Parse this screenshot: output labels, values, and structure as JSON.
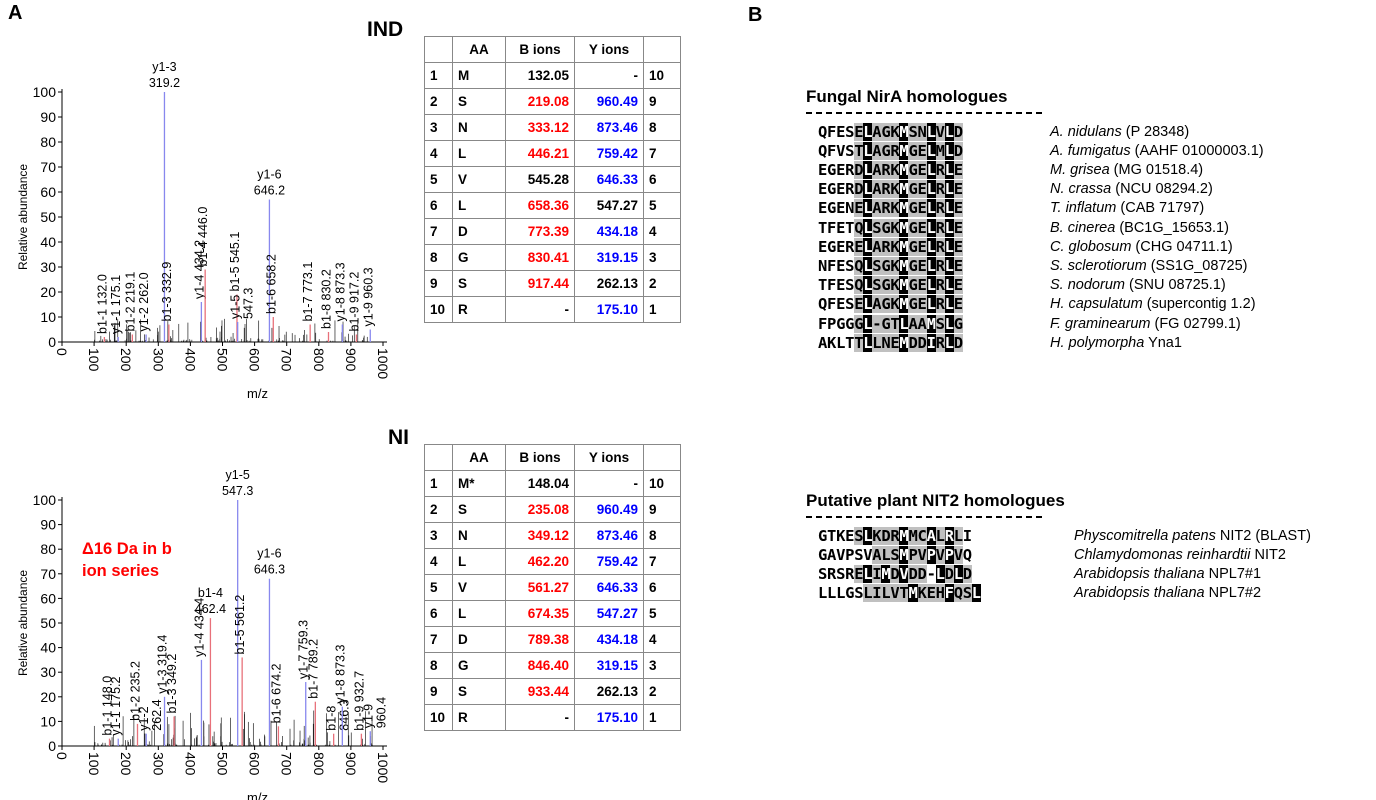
{
  "panels": {
    "a_label": "A",
    "b_label": "B"
  },
  "charts": [
    {
      "condition": "IND",
      "ylabel": "Relative abundance",
      "xlabel": "m/z",
      "xticks": [
        0,
        100,
        200,
        300,
        400,
        500,
        600,
        700,
        800,
        900,
        1000
      ],
      "yticks": [
        0,
        10,
        20,
        30,
        40,
        50,
        60,
        70,
        80,
        90,
        100
      ],
      "annotation": [],
      "peaks": [
        {
          "mz": 132.0,
          "h": 2,
          "c": "r",
          "lines": [
            "b1-1 132.0"
          ]
        },
        {
          "mz": 175.1,
          "h": 2,
          "c": "b",
          "lines": [
            "y1-1 175.1"
          ]
        },
        {
          "mz": 219.1,
          "h": 3,
          "c": "r",
          "lines": [
            "b1-2 219.1"
          ]
        },
        {
          "mz": 262.0,
          "h": 3,
          "c": "b",
          "lines": [
            "y1-2 262.0"
          ]
        },
        {
          "mz": 319.2,
          "h": 100,
          "c": "b",
          "lines": [
            "y1-3",
            "319.2"
          ]
        },
        {
          "mz": 332.9,
          "h": 7,
          "c": "r",
          "lines": [
            "b1-3 332.9"
          ]
        },
        {
          "mz": 434.2,
          "h": 16,
          "c": "b",
          "lines": [
            "y1-4 434.2"
          ]
        },
        {
          "mz": 446.0,
          "h": 29,
          "c": "r",
          "lines": [
            "b1-4 446.0"
          ]
        },
        {
          "mz": 545.1,
          "h": 19,
          "c": "r",
          "lines": [
            "b1-5 545.1"
          ]
        },
        {
          "mz": 547.3,
          "h": 8,
          "c": "b",
          "lines": [
            "y1-5",
            "547.3"
          ]
        },
        {
          "mz": 646.2,
          "h": 57,
          "c": "b",
          "lines": [
            "y1-6",
            "646.2"
          ]
        },
        {
          "mz": 658.2,
          "h": 10,
          "c": "r",
          "lines": [
            "b1-6 658.2"
          ]
        },
        {
          "mz": 773.1,
          "h": 7,
          "c": "r",
          "lines": [
            "b1-7 773.1"
          ]
        },
        {
          "mz": 830.2,
          "h": 4,
          "c": "r",
          "lines": [
            "b1-8 830.2"
          ]
        },
        {
          "mz": 873.3,
          "h": 7,
          "c": "b",
          "lines": [
            "y1-8 873.3"
          ]
        },
        {
          "mz": 917.2,
          "h": 3,
          "c": "r",
          "lines": [
            "b1-9 917.2"
          ]
        },
        {
          "mz": 960.3,
          "h": 5,
          "c": "b",
          "lines": [
            "y1-9 960.3"
          ]
        }
      ],
      "table": {
        "headers": [
          "",
          "AA",
          "B ions",
          "Y ions",
          ""
        ],
        "rows": [
          [
            "1",
            "M",
            "132.05",
            "-",
            "10"
          ],
          [
            "2",
            "S",
            "219.08",
            "960.49",
            "9"
          ],
          [
            "3",
            "N",
            "333.12",
            "873.46",
            "8"
          ],
          [
            "4",
            "L",
            "446.21",
            "759.42",
            "7"
          ],
          [
            "5",
            "V",
            "545.28",
            "646.33",
            "6"
          ],
          [
            "6",
            "L",
            "658.36",
            "547.27",
            "5"
          ],
          [
            "7",
            "D",
            "773.39",
            "434.18",
            "4"
          ],
          [
            "8",
            "G",
            "830.41",
            "319.15",
            "3"
          ],
          [
            "9",
            "S",
            "917.44",
            "262.13",
            "2"
          ],
          [
            "10",
            "R",
            "-",
            "175.10",
            "1"
          ]
        ],
        "b_colors": [
          "k",
          "r",
          "r",
          "r",
          "k",
          "r",
          "r",
          "r",
          "r",
          "k"
        ],
        "y_colors": [
          "k",
          "b",
          "b",
          "b",
          "b",
          "k",
          "b",
          "b",
          "k",
          "b"
        ]
      }
    },
    {
      "condition": "NI",
      "ylabel": "Relative abundance",
      "xlabel": "m/z",
      "xticks": [
        0,
        100,
        200,
        300,
        400,
        500,
        600,
        700,
        800,
        900,
        1000
      ],
      "yticks": [
        0,
        10,
        20,
        30,
        40,
        50,
        60,
        70,
        80,
        90,
        100
      ],
      "annotation": [
        "Δ16  Da in b",
        "ion series"
      ],
      "peaks": [
        {
          "mz": 148.0,
          "h": 3,
          "c": "r",
          "lines": [
            "b1-1 148.0"
          ]
        },
        {
          "mz": 175.2,
          "h": 3,
          "c": "b",
          "lines": [
            "y1-1 175.2"
          ]
        },
        {
          "mz": 235.2,
          "h": 9,
          "c": "r",
          "lines": [
            "b1-2 235.2"
          ]
        },
        {
          "mz": 262.4,
          "h": 5,
          "c": "b",
          "lines": [
            "y1-2",
            "262.4"
          ]
        },
        {
          "mz": 319.4,
          "h": 20,
          "c": "b",
          "lines": [
            "y1-3 319.4"
          ]
        },
        {
          "mz": 349.2,
          "h": 12,
          "c": "r",
          "lines": [
            "b1-3 349.2"
          ]
        },
        {
          "mz": 434.4,
          "h": 35,
          "c": "b",
          "lines": [
            "y1-4 434.4"
          ]
        },
        {
          "mz": 462.4,
          "h": 52,
          "c": "r",
          "lines": [
            "b1-4",
            "462.4"
          ]
        },
        {
          "mz": 547.3,
          "h": 100,
          "c": "b",
          "lines": [
            "y1-5",
            "547.3"
          ]
        },
        {
          "mz": 561.2,
          "h": 36,
          "c": "r",
          "lines": [
            "b1-5 561.2"
          ]
        },
        {
          "mz": 646.3,
          "h": 68,
          "c": "b",
          "lines": [
            "y1-6",
            "646.3"
          ]
        },
        {
          "mz": 674.2,
          "h": 8,
          "c": "r",
          "lines": [
            "b1-6 674.2"
          ]
        },
        {
          "mz": 759.3,
          "h": 26,
          "c": "b",
          "lines": [
            "y1-7 759.3"
          ]
        },
        {
          "mz": 789.2,
          "h": 18,
          "c": "r",
          "lines": [
            "b1-7 789.2"
          ]
        },
        {
          "mz": 846.3,
          "h": 5,
          "c": "r",
          "lines": [
            "b1-8",
            "846.3"
          ]
        },
        {
          "mz": 873.3,
          "h": 16,
          "c": "b",
          "lines": [
            "y1-8 873.3"
          ]
        },
        {
          "mz": 932.7,
          "h": 5,
          "c": "r",
          "lines": [
            "b1-9 932.7"
          ]
        },
        {
          "mz": 960.4,
          "h": 6,
          "c": "b",
          "lines": [
            "y1-9",
            "960.4"
          ]
        }
      ],
      "table": {
        "headers": [
          "",
          "AA",
          "B ions",
          "Y ions",
          ""
        ],
        "rows": [
          [
            "1",
            "M*",
            "148.04",
            "-",
            "10"
          ],
          [
            "2",
            "S",
            "235.08",
            "960.49",
            "9"
          ],
          [
            "3",
            "N",
            "349.12",
            "873.46",
            "8"
          ],
          [
            "4",
            "L",
            "462.20",
            "759.42",
            "7"
          ],
          [
            "5",
            "V",
            "561.27",
            "646.33",
            "6"
          ],
          [
            "6",
            "L",
            "674.35",
            "547.27",
            "5"
          ],
          [
            "7",
            "D",
            "789.38",
            "434.18",
            "4"
          ],
          [
            "8",
            "G",
            "846.40",
            "319.15",
            "3"
          ],
          [
            "9",
            "S",
            "933.44",
            "262.13",
            "2"
          ],
          [
            "10",
            "R",
            "-",
            "175.10",
            "1"
          ]
        ],
        "b_colors": [
          "k",
          "r",
          "r",
          "r",
          "r",
          "r",
          "r",
          "r",
          "r",
          "k"
        ],
        "y_colors": [
          "k",
          "b",
          "b",
          "b",
          "b",
          "b",
          "b",
          "b",
          "k",
          "b"
        ]
      }
    }
  ],
  "alignment_fungal": {
    "title": "Fungal NirA homologues",
    "rows": [
      {
        "seq": "QFESELAGKMSNLVLD",
        "shade": "----gbgggbggbgbg",
        "org": [
          {
            "t": "A.  nidulans",
            "i": true
          },
          {
            "t": " (P 28348)",
            "i": false
          }
        ]
      },
      {
        "seq": "QFVSTLAGRMGELMLD",
        "shade": "----gbgggbggbgbg",
        "org": [
          {
            "t": "A.  fumigatus",
            "i": true
          },
          {
            "t": " (AAHF 01000003.1)",
            "i": false
          }
        ]
      },
      {
        "seq": "EGERDLARKMGELRLE",
        "shade": "----gbgggbggbgbg",
        "org": [
          {
            "t": "M. grisea",
            "i": true
          },
          {
            "t": " (MG 01518.4)",
            "i": false
          }
        ]
      },
      {
        "seq": "EGERDLARKMGELRLE",
        "shade": "----gbgggbggbgbg",
        "org": [
          {
            "t": "N. crassa",
            "i": true
          },
          {
            "t": " (NCU 08294.2)",
            "i": false
          }
        ]
      },
      {
        "seq": "EGENELARKMGELRLE",
        "shade": "----gbgggbggbgbg",
        "org": [
          {
            "t": "T.   inflatum",
            "i": true
          },
          {
            "t": " (CAB 71797)",
            "i": false
          }
        ]
      },
      {
        "seq": "TFETQLSGKMGELRLE",
        "shade": "----gbgggbggbgbg",
        "org": [
          {
            "t": "B. cinerea",
            "i": true
          },
          {
            "t": " (BC1G_15653.1)",
            "i": false
          }
        ]
      },
      {
        "seq": "EGERELARKMGELRLE",
        "shade": "----gbgggbggbgbg",
        "org": [
          {
            "t": "C. globosum",
            "i": true
          },
          {
            "t": " (CHG 04711.1)",
            "i": false
          }
        ]
      },
      {
        "seq": "NFESQLSGKMGELRLE",
        "shade": "----gbgggbggbgbg",
        "org": [
          {
            "t": "S. sclerotiorum",
            "i": true
          },
          {
            "t": " (SS1G_08725)",
            "i": false
          }
        ]
      },
      {
        "seq": "TFESQLSGKMGELRLE",
        "shade": "----gbgggbggbgbg",
        "org": [
          {
            "t": "S.  nodorum",
            "i": true
          },
          {
            "t": " (SNU 08725.1)",
            "i": false
          }
        ]
      },
      {
        "seq": "QFESELAGKMGELRLE",
        "shade": "----gbgggbggbgbg",
        "org": [
          {
            "t": "H. capsulatum",
            "i": true
          },
          {
            "t": " (supercontig 1.2)",
            "i": false
          }
        ]
      },
      {
        "seq": "FPGGGL-GTLAAMSLG",
        "shade": "----gbgggbggbgbg",
        "org": [
          {
            "t": "F.  graminearum",
            "i": true
          },
          {
            "t": " (FG 02799.1)",
            "i": false
          }
        ]
      },
      {
        "seq": "AKLTTLLNEMDDIRLD",
        "shade": "----gbgggbggbgbg",
        "org": [
          {
            "t": "H. polymorpha",
            "i": true
          },
          {
            "t": " Yna1",
            "i": false
          }
        ]
      }
    ]
  },
  "alignment_plant": {
    "title": "Putative plant NIT2 homologues",
    "rows": [
      {
        "seq": "GTKESLKDRMMCALRLI",
        "shade": "----gbgggbggbgbg-",
        "org": [
          {
            "t": "Physcomitrella patens",
            "i": true
          },
          {
            "t": " NIT2  (BLAST)",
            "i": false
          }
        ]
      },
      {
        "seq": "GAVPSVALSMPVPVPVQ",
        "shade": "------gggbggbgbg-",
        "org": [
          {
            "t": "Chlamydomonas reinhardtii",
            "i": true
          },
          {
            "t": " NIT2",
            "i": false
          }
        ]
      },
      {
        "seq": "SRSRELIMDVDD-LDLD",
        "shade": "----gbgbgbgg-bgbg",
        "org": [
          {
            "t": "Arabidopsis thaliana",
            "i": true
          },
          {
            "t": " NPL7#1",
            "i": false
          }
        ]
      },
      {
        "seq": "LLLGSLILVTMKEHFQSL",
        "shade": "-----gggggbgggbggb",
        "org": [
          {
            "t": "Arabidopsis thaliana",
            "i": true
          },
          {
            "t": " NPL7#2",
            "i": false
          }
        ]
      }
    ]
  }
}
